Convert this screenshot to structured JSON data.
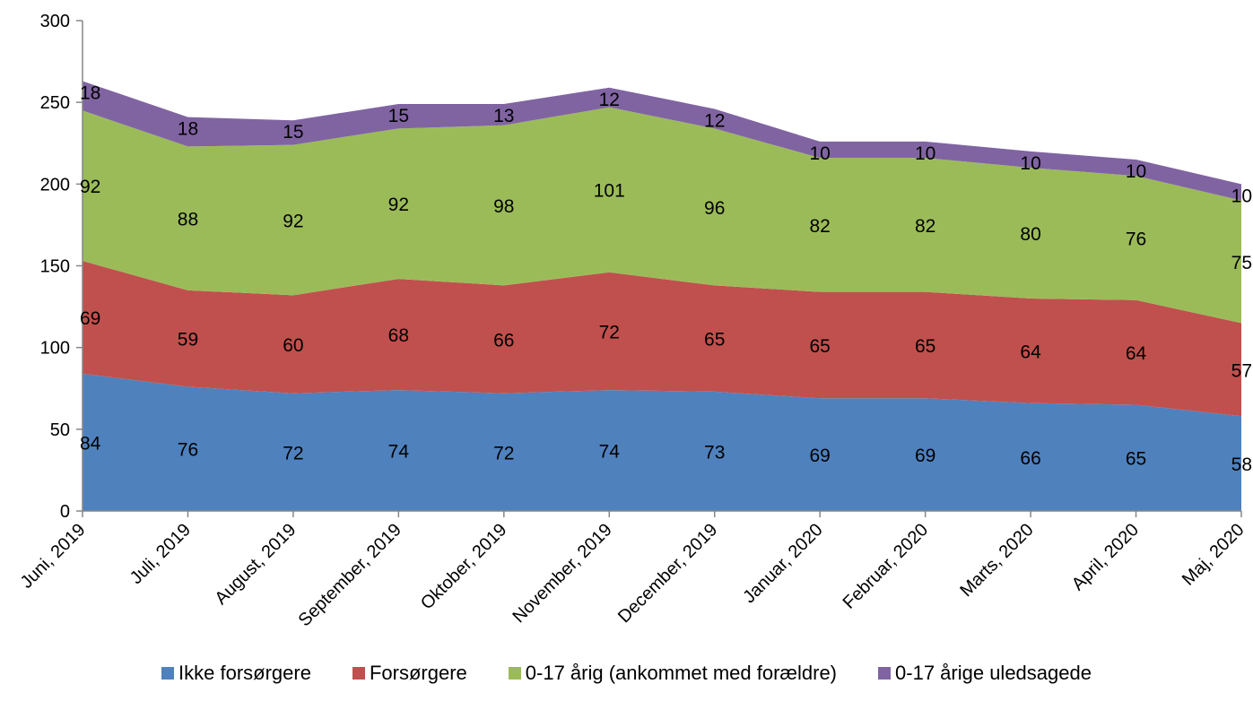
{
  "chart_data": {
    "type": "area",
    "stacked": true,
    "categories": [
      "Juni, 2019",
      "Juli, 2019",
      "August, 2019",
      "September, 2019",
      "Oktober, 2019",
      "November, 2019",
      "December, 2019",
      "Januar, 2020",
      "Februar, 2020",
      "Marts, 2020",
      "April, 2020",
      "Maj, 2020"
    ],
    "series": [
      {
        "name": "Ikke forsørgere",
        "color": "#4F81BD",
        "values": [
          84,
          76,
          72,
          74,
          72,
          74,
          73,
          69,
          69,
          66,
          65,
          58
        ]
      },
      {
        "name": "Forsørgere",
        "color": "#C0504D",
        "values": [
          69,
          59,
          60,
          68,
          66,
          72,
          65,
          65,
          65,
          64,
          64,
          57
        ]
      },
      {
        "name": "0-17 årig (ankommet med forældre)",
        "color": "#9BBB59",
        "values": [
          92,
          88,
          92,
          92,
          98,
          101,
          96,
          82,
          82,
          80,
          76,
          75
        ]
      },
      {
        "name": "0-17 årige uledsagede",
        "color": "#8064A2",
        "values": [
          18,
          18,
          15,
          15,
          13,
          12,
          12,
          10,
          10,
          10,
          10,
          10
        ]
      }
    ],
    "ylim": [
      0,
      300
    ],
    "yticks": [
      0,
      50,
      100,
      150,
      200,
      250,
      300
    ],
    "title": "",
    "xlabel": "",
    "ylabel": "",
    "grid": false,
    "legend": "bottom"
  }
}
